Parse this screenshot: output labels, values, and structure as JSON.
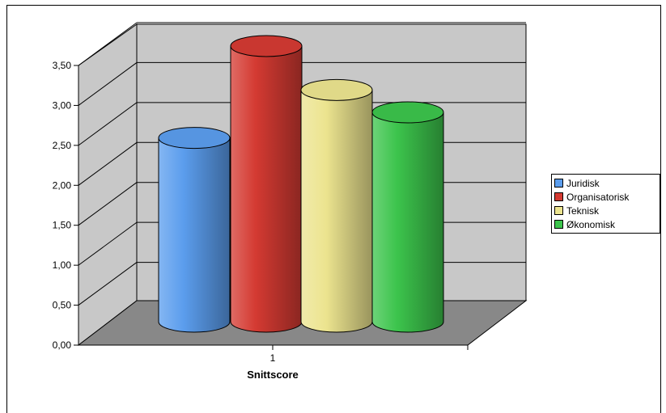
{
  "chart_data": {
    "type": "bar",
    "style": "3d-cylinder",
    "categories": [
      "1"
    ],
    "series": [
      {
        "name": "Juridisk",
        "values": [
          2.3
        ],
        "color": "#5b9ded"
      },
      {
        "name": "Organisatorisk",
        "values": [
          3.45
        ],
        "color": "#d43a32"
      },
      {
        "name": "Teknisk",
        "values": [
          2.9
        ],
        "color": "#ece48f"
      },
      {
        "name": "Økonomisk",
        "values": [
          2.62
        ],
        "color": "#3cc44c"
      }
    ],
    "title": "",
    "xlabel": "Snittscore",
    "ylabel": "",
    "ylim": [
      0,
      3.5
    ],
    "yticks": [
      "0,00",
      "0,50",
      "1,00",
      "1,50",
      "2,00",
      "2,50",
      "3,00",
      "3,50"
    ],
    "grid": true,
    "legend": "right"
  }
}
